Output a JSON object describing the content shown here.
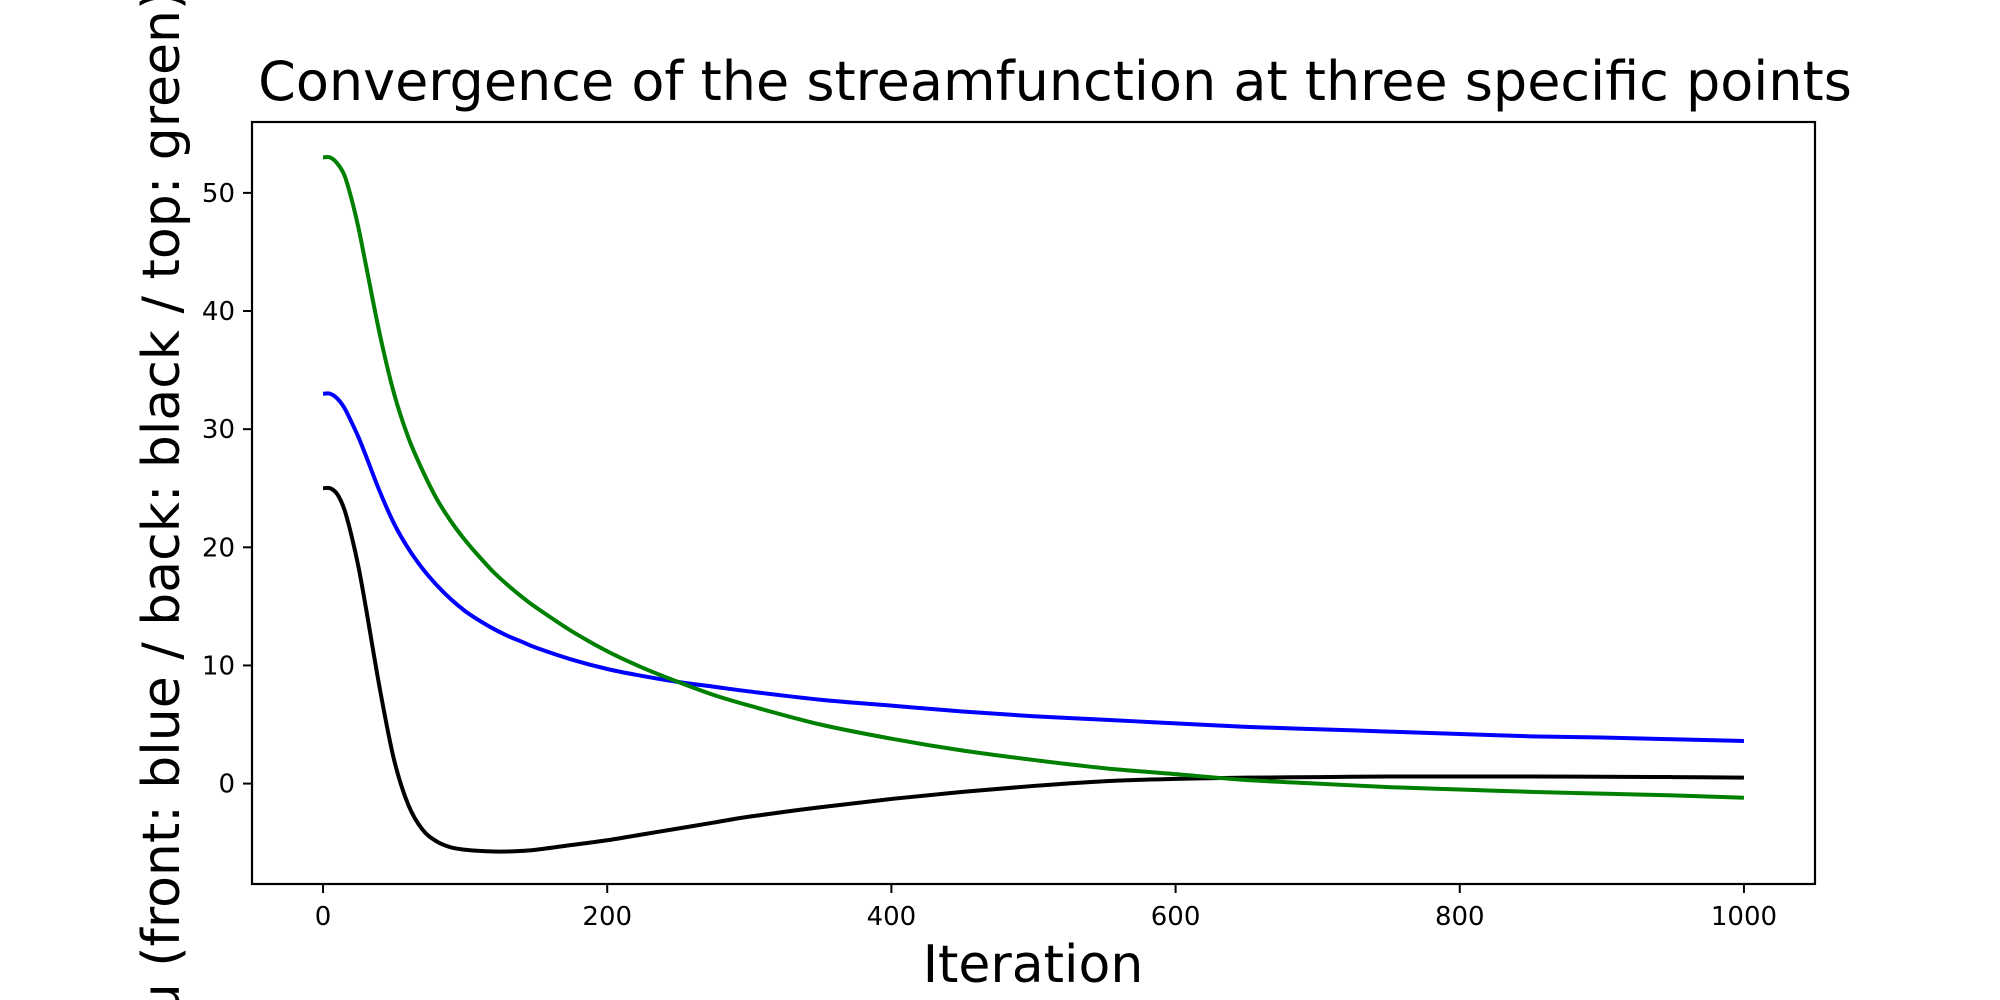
{
  "chart_data": {
    "type": "line",
    "title": "Convergence of the streamfunction at three specific points",
    "xlabel": "Iteration",
    "ylabel": "u (front: blue / back: black / top: green)",
    "xlim": [
      -50,
      1050
    ],
    "ylim": [
      -8.5,
      56
    ],
    "xticks": [
      0,
      200,
      400,
      600,
      800,
      1000
    ],
    "yticks": [
      0,
      10,
      20,
      30,
      40,
      50
    ],
    "grid": false,
    "legend": "none",
    "x": [
      0,
      5,
      10,
      15,
      20,
      25,
      30,
      40,
      50,
      60,
      70,
      80,
      90,
      100,
      110,
      120,
      130,
      140,
      150,
      175,
      200,
      225,
      250,
      275,
      300,
      350,
      400,
      450,
      500,
      550,
      600,
      650,
      700,
      750,
      800,
      850,
      900,
      950,
      1000
    ],
    "series": [
      {
        "color": "#0000ff",
        "values": [
          33.0,
          33.0,
          32.6,
          31.8,
          30.6,
          29.3,
          27.8,
          24.7,
          22.0,
          19.9,
          18.2,
          16.8,
          15.6,
          14.6,
          13.8,
          13.1,
          12.5,
          12.0,
          11.5,
          10.5,
          9.7,
          9.1,
          8.6,
          8.2,
          7.8,
          7.1,
          6.6,
          6.1,
          5.7,
          5.4,
          5.1,
          4.8,
          4.6,
          4.4,
          4.2,
          4.0,
          3.9,
          3.75,
          3.6
        ]
      },
      {
        "color": "#000000",
        "values": [
          25.0,
          25.0,
          24.5,
          23.2,
          21.0,
          18.3,
          15.0,
          8.0,
          2.0,
          -1.8,
          -3.9,
          -4.9,
          -5.4,
          -5.6,
          -5.7,
          -5.75,
          -5.75,
          -5.7,
          -5.6,
          -5.2,
          -4.8,
          -4.3,
          -3.8,
          -3.3,
          -2.8,
          -2.0,
          -1.3,
          -0.7,
          -0.2,
          0.2,
          0.4,
          0.5,
          0.55,
          0.6,
          0.6,
          0.6,
          0.58,
          0.55,
          0.5
        ]
      },
      {
        "color": "#008000",
        "values": [
          53.0,
          53.0,
          52.5,
          51.5,
          49.5,
          47.0,
          44.0,
          38.0,
          33.0,
          29.3,
          26.5,
          24.1,
          22.2,
          20.6,
          19.2,
          17.9,
          16.8,
          15.8,
          14.9,
          12.9,
          11.2,
          9.8,
          8.6,
          7.5,
          6.6,
          5.0,
          3.8,
          2.8,
          2.0,
          1.3,
          0.8,
          0.3,
          0.0,
          -0.3,
          -0.5,
          -0.7,
          -0.85,
          -1.0,
          -1.2
        ]
      }
    ]
  }
}
